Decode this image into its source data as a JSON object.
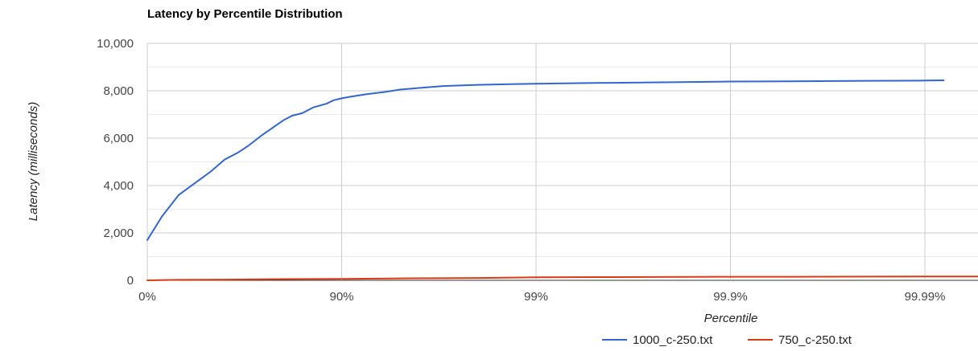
{
  "chart_data": {
    "type": "line",
    "title": "Latency by Percentile Distribution",
    "xlabel": "Percentile",
    "ylabel": "Latency (milliseconds)",
    "x_scale": "log-inverse",
    "x_ticks": [
      {
        "value": 0,
        "label": "0%"
      },
      {
        "value": 0.9,
        "label": "90%"
      },
      {
        "value": 0.99,
        "label": "99%"
      },
      {
        "value": 0.999,
        "label": "99.9%"
      },
      {
        "value": 0.9999,
        "label": "99.99%"
      }
    ],
    "x_max": 0.999953,
    "ylim": [
      0,
      10000
    ],
    "y_ticks": [
      {
        "value": 0,
        "label": "0"
      },
      {
        "value": 2000,
        "label": "2,000"
      },
      {
        "value": 4000,
        "label": "4,000"
      },
      {
        "value": 6000,
        "label": "6,000"
      },
      {
        "value": 8000,
        "label": "8,000"
      },
      {
        "value": 10000,
        "label": "10,000"
      }
    ],
    "grid": true,
    "legend_position": "bottom-right",
    "series": [
      {
        "name": "1000_c-250.txt",
        "color": "#3366cc",
        "points": [
          [
            0.0,
            1700
          ],
          [
            0.16,
            2700
          ],
          [
            0.31,
            3600
          ],
          [
            0.43,
            4100
          ],
          [
            0.53,
            4600
          ],
          [
            0.6,
            5100
          ],
          [
            0.66,
            5400
          ],
          [
            0.7,
            5700
          ],
          [
            0.74,
            6100
          ],
          [
            0.77,
            6400
          ],
          [
            0.8,
            6750
          ],
          [
            0.82,
            6950
          ],
          [
            0.84,
            7050
          ],
          [
            0.86,
            7300
          ],
          [
            0.88,
            7450
          ],
          [
            0.89,
            7600
          ],
          [
            0.9,
            7680
          ],
          [
            0.91,
            7750
          ],
          [
            0.925,
            7850
          ],
          [
            0.94,
            7950
          ],
          [
            0.95,
            8050
          ],
          [
            0.96,
            8120
          ],
          [
            0.97,
            8200
          ],
          [
            0.98,
            8250
          ],
          [
            0.99,
            8300
          ],
          [
            0.995,
            8330
          ],
          [
            0.998,
            8360
          ],
          [
            0.999,
            8390
          ],
          [
            0.9995,
            8400
          ],
          [
            0.9998,
            8420
          ],
          [
            0.9999,
            8430
          ],
          [
            0.99992,
            8440
          ]
        ]
      },
      {
        "name": "750_c-250.txt",
        "color": "#dc3912",
        "points": [
          [
            0.0,
            0
          ],
          [
            0.3,
            20
          ],
          [
            0.6,
            30
          ],
          [
            0.8,
            50
          ],
          [
            0.9,
            60
          ],
          [
            0.95,
            80
          ],
          [
            0.98,
            100
          ],
          [
            0.99,
            130
          ],
          [
            0.995,
            135
          ],
          [
            0.999,
            150
          ],
          [
            0.9995,
            150
          ],
          [
            0.9999,
            160
          ],
          [
            0.999953,
            160
          ]
        ]
      }
    ]
  }
}
